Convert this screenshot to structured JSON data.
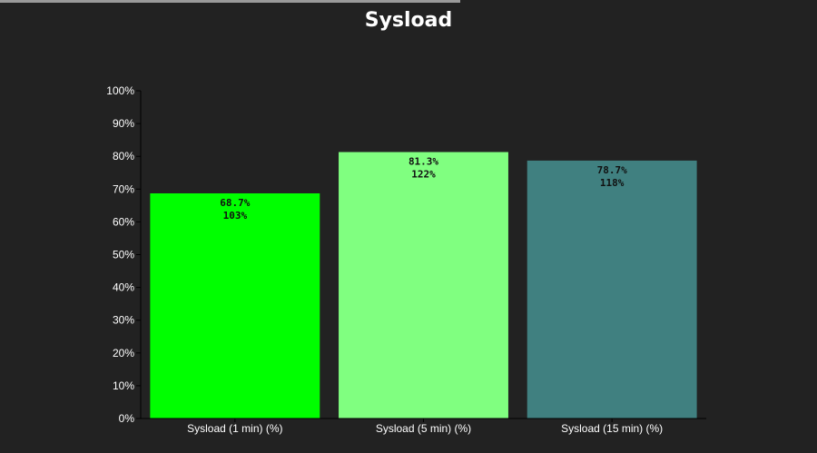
{
  "chart_data": {
    "type": "bar",
    "title": "Sysload",
    "categories": [
      "Sysload (1 min) (%)",
      "Sysload (5 min) (%)",
      "Sysload (15 min) (%)"
    ],
    "values": [
      68.7,
      81.3,
      78.7
    ],
    "value_labels": [
      "68.7%",
      "81.3%",
      "78.7%"
    ],
    "secondary_labels": [
      "103%",
      "122%",
      "118%"
    ],
    "colors": [
      "#00ff00",
      "#80ff80",
      "#408080"
    ],
    "ylim": [
      0,
      100
    ],
    "yticks": [
      "0%",
      "10%",
      "20%",
      "30%",
      "40%",
      "50%",
      "60%",
      "70%",
      "80%",
      "90%",
      "100%"
    ],
    "grid": false,
    "xlabel": "",
    "ylabel": ""
  },
  "theme": {
    "background": "#222222",
    "axis_color": "#000000",
    "text_color": "#ffffff"
  }
}
